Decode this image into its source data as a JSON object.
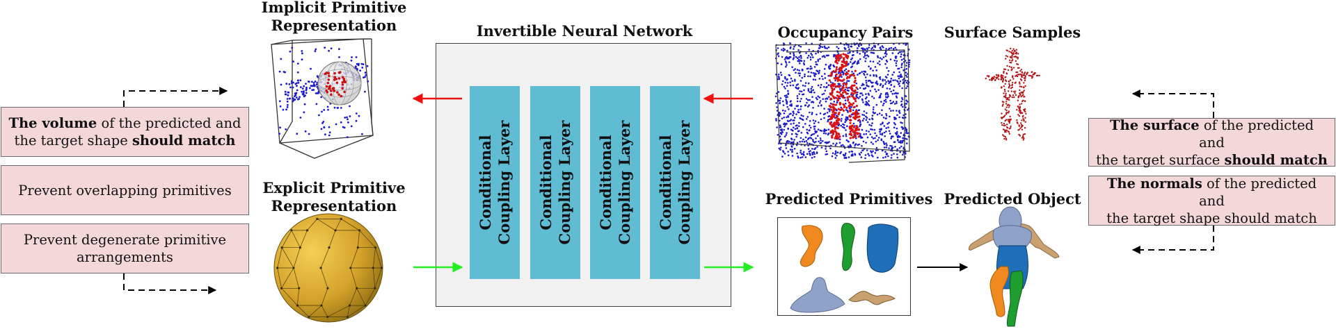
{
  "titles": {
    "implicit": [
      "Implicit Primitive",
      "Representation"
    ],
    "explicit": [
      "Explicit Primitive",
      "Representation"
    ],
    "inn": "Invertible Neural Network",
    "occupancy": "Occupancy Pairs",
    "surface_samples": "Surface Samples",
    "predicted_primitives": "Predicted Primitives",
    "predicted_object": "Predicted Object"
  },
  "coupling_layers": [
    [
      "Conditional",
      "Coupling Layer"
    ],
    [
      "Conditional",
      "Coupling Layer"
    ],
    [
      "Conditional",
      "Coupling Layer"
    ],
    [
      "Conditional",
      "Coupling Layer"
    ]
  ],
  "left_losses": {
    "volume": {
      "b1": "The volume",
      "t1": " of the predicted and",
      "t2": "the target shape ",
      "b2": "should match"
    },
    "overlap": "Prevent overlapping primitives",
    "degenerate": [
      "Prevent degenerate primitive",
      "arrangements"
    ]
  },
  "right_losses": {
    "surface": {
      "b1": "The surface",
      "t1": " of the predicted and",
      "t2": "the target surface ",
      "b2": "should match"
    },
    "normals": {
      "b1": "The normals",
      "t1": " of the predicted and",
      "t2": "the target shape should match"
    }
  },
  "colors": {
    "loss_box": "#f4d7d9",
    "coupling_layer": "#5fbcd3",
    "inn_background": "#f1f1f1",
    "arrow_red": "#ee1111",
    "arrow_green": "#22ee22",
    "points_blue": "#1a1acc",
    "points_red": "#cc1111",
    "sphere_gold": "#d9a62a",
    "primitive_orange": "#f08a1e",
    "primitive_green": "#1e9e2e",
    "primitive_blue": "#1e6fb8",
    "primitive_lavender": "#8fa2c8",
    "primitive_tan": "#c9a070"
  },
  "icons": [
    "point-cloud-cube",
    "icosphere",
    "human-surface-samples",
    "human-predicted-object"
  ]
}
